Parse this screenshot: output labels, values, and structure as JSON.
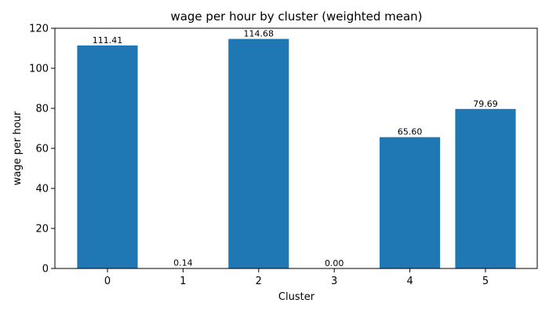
{
  "chart_data": {
    "type": "bar",
    "title": "wage per hour by cluster (weighted mean)",
    "xlabel": "Cluster",
    "ylabel": "wage per hour",
    "categories": [
      "0",
      "1",
      "2",
      "3",
      "4",
      "5"
    ],
    "values": [
      111.41,
      0.14,
      114.68,
      0.0,
      65.6,
      79.69
    ],
    "data_labels": [
      "111.41",
      "0.14",
      "114.68",
      "0.00",
      "65.60",
      "79.69"
    ],
    "ylim": [
      0,
      120
    ],
    "yticks": [
      "0",
      "20",
      "40",
      "60",
      "80",
      "100",
      "120"
    ],
    "bar_color": "#1f77b4",
    "grid": false,
    "legend": "none"
  }
}
